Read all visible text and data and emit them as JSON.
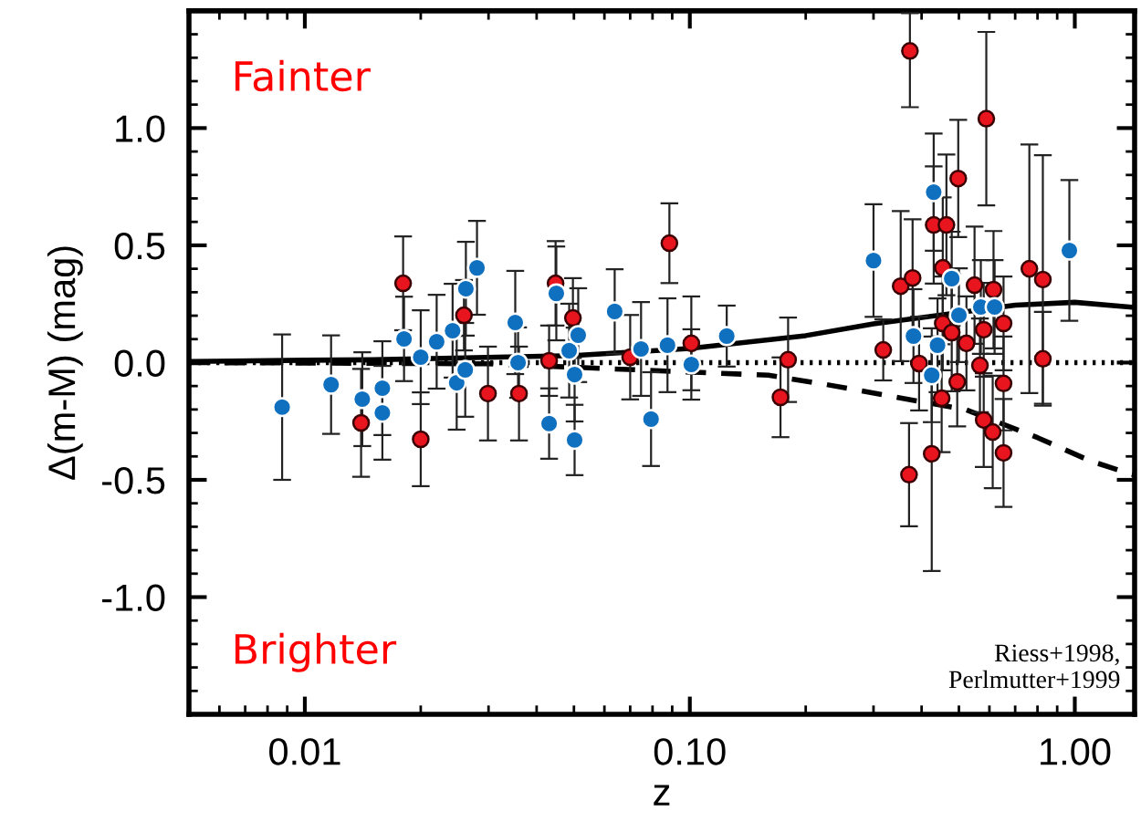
{
  "chart_data": {
    "type": "scatter",
    "xlabel": "z",
    "ylabel": "Δ(m-M) (mag)",
    "log": "x",
    "xlim": [
      0.005,
      1.43
    ],
    "ylim": [
      -1.5,
      1.5
    ],
    "xticks": [
      {
        "value": 0.01,
        "label": "0.01"
      },
      {
        "value": 0.1,
        "label": "0.10"
      },
      {
        "value": 1,
        "label": "1.00"
      }
    ],
    "yticks": [
      {
        "value": -1.0,
        "label": "-1.0"
      },
      {
        "value": -0.5,
        "label": "-0.5"
      },
      {
        "value": 0.0,
        "label": "0.0"
      },
      {
        "value": 0.5,
        "label": "0.5"
      },
      {
        "value": 1.0,
        "label": "1.0"
      }
    ],
    "grid": false,
    "legend": false,
    "annotations": [
      "Fainter",
      "Brighter",
      "Riess+1998,\nPerlmutter+1999"
    ],
    "series": [
      {
        "type": "line",
        "marker": "none",
        "line_style": "dotted",
        "color": "#000000",
        "x": [
          0.005,
          0.05,
          0.2,
          0.5,
          1.0,
          1.43
        ],
        "values": [
          0,
          0,
          0,
          0,
          0,
          0
        ]
      },
      {
        "type": "line",
        "marker": "none",
        "line_style": "dashed",
        "color": "#000000",
        "x": [
          0.005,
          0.03,
          0.16,
          0.22,
          0.35,
          0.52,
          0.8,
          1.1,
          1.43
        ],
        "values": [
          0,
          -0.005,
          -0.054,
          -0.09,
          -0.15,
          -0.2,
          -0.32,
          -0.42,
          -0.48
        ]
      },
      {
        "type": "line",
        "marker": "none",
        "line_style": "solid",
        "color": "#000000",
        "x": [
          0.005,
          0.01,
          0.015,
          0.05,
          0.1,
          0.2,
          0.3,
          0.7,
          1.0,
          1.43
        ],
        "values": [
          0.005,
          0.01,
          0.012,
          0.03,
          0.06,
          0.115,
          0.165,
          0.245,
          0.257,
          0.235
        ]
      },
      {
        "marker": "circle",
        "color": "#e8141e",
        "x": [
          0.014,
          0.018,
          0.02,
          0.0259,
          0.0299,
          0.036,
          0.0431,
          0.0448,
          0.0497,
          0.07,
          0.0885,
          0.1009,
          0.172,
          0.18,
          0.318,
          0.353,
          0.371,
          0.373,
          0.379,
          0.394,
          0.425,
          0.43,
          0.451,
          0.454,
          0.454,
          0.464,
          0.479,
          0.495,
          0.498,
          0.523,
          0.549,
          0.567,
          0.58,
          0.58,
          0.589,
          0.612,
          0.615,
          0.653,
          0.653,
          0.653,
          0.762,
          0.826,
          0.826
        ],
        "values": [
          -0.257,
          0.338,
          -0.327,
          0.202,
          -0.132,
          -0.132,
          0.008,
          0.338,
          0.19,
          0.023,
          0.509,
          0.082,
          -0.148,
          0.012,
          0.054,
          0.326,
          -0.478,
          1.329,
          0.361,
          -0.004,
          -0.389,
          0.587,
          -0.152,
          0.167,
          0.404,
          0.587,
          0.128,
          -0.082,
          0.785,
          0.082,
          0.33,
          -0.012,
          0.14,
          -0.245,
          1.04,
          -0.296,
          0.311,
          -0.089,
          0.167,
          -0.385,
          0.4,
          0.354,
          0.016
        ],
        "errors": [
          0.23,
          0.2,
          0.2,
          0.15,
          0.2,
          0.2,
          0.15,
          0.18,
          0.17,
          0.18,
          0.17,
          0.2,
          0.17,
          0.18,
          0.13,
          0.32,
          0.22,
          [
            1.089,
            1.49
          ],
          0.25,
          0.2,
          0.5,
          0.25,
          0.23,
          0.2,
          0.3,
          0.3,
          0.25,
          0.19,
          0.25,
          0.2,
          0.25,
          0.2,
          0.2,
          0.2,
          0.37,
          0.24,
          0.25,
          0.2,
          0.2,
          0.23,
          0.53,
          0.53,
          0.2
        ]
      },
      {
        "marker": "circle",
        "color": "#1070c0",
        "x": [
          0.00873,
          0.0117,
          0.0141,
          0.0159,
          0.0159,
          0.0181,
          0.02,
          0.022,
          0.0242,
          0.0248,
          0.0261,
          0.0262,
          0.028,
          0.0352,
          0.0358,
          0.0431,
          0.045,
          0.0486,
          0.0502,
          0.0502,
          0.0513,
          0.0638,
          0.0747,
          0.0793,
          0.0875,
          0.1009,
          0.1247,
          0.3,
          0.381,
          0.425,
          0.43,
          0.44,
          0.479,
          0.5,
          0.57,
          0.619,
          0.968
        ],
        "values": [
          -0.19,
          -0.094,
          -0.156,
          -0.109,
          -0.214,
          0.101,
          0.023,
          0.089,
          0.136,
          -0.086,
          -0.031,
          0.315,
          0.404,
          0.171,
          0.0,
          -0.26,
          0.295,
          0.051,
          -0.051,
          -0.33,
          0.117,
          0.218,
          0.058,
          -0.241,
          0.074,
          -0.008,
          0.113,
          0.435,
          0.113,
          -0.054,
          0.727,
          0.074,
          0.358,
          0.202,
          0.237,
          0.237,
          0.478
        ],
        "errors": [
          0.31,
          0.21,
          0.2,
          0.2,
          0.2,
          0.18,
          0.2,
          0.2,
          0.2,
          0.2,
          0.2,
          0.2,
          0.2,
          0.22,
          0.15,
          0.15,
          0.2,
          0.2,
          0.2,
          0.15,
          0.2,
          0.18,
          0.2,
          0.2,
          0.2,
          0.15,
          0.13,
          0.24,
          0.2,
          0.2,
          0.25,
          0.2,
          0.2,
          0.2,
          0.2,
          0.2,
          0.3
        ]
      }
    ]
  }
}
